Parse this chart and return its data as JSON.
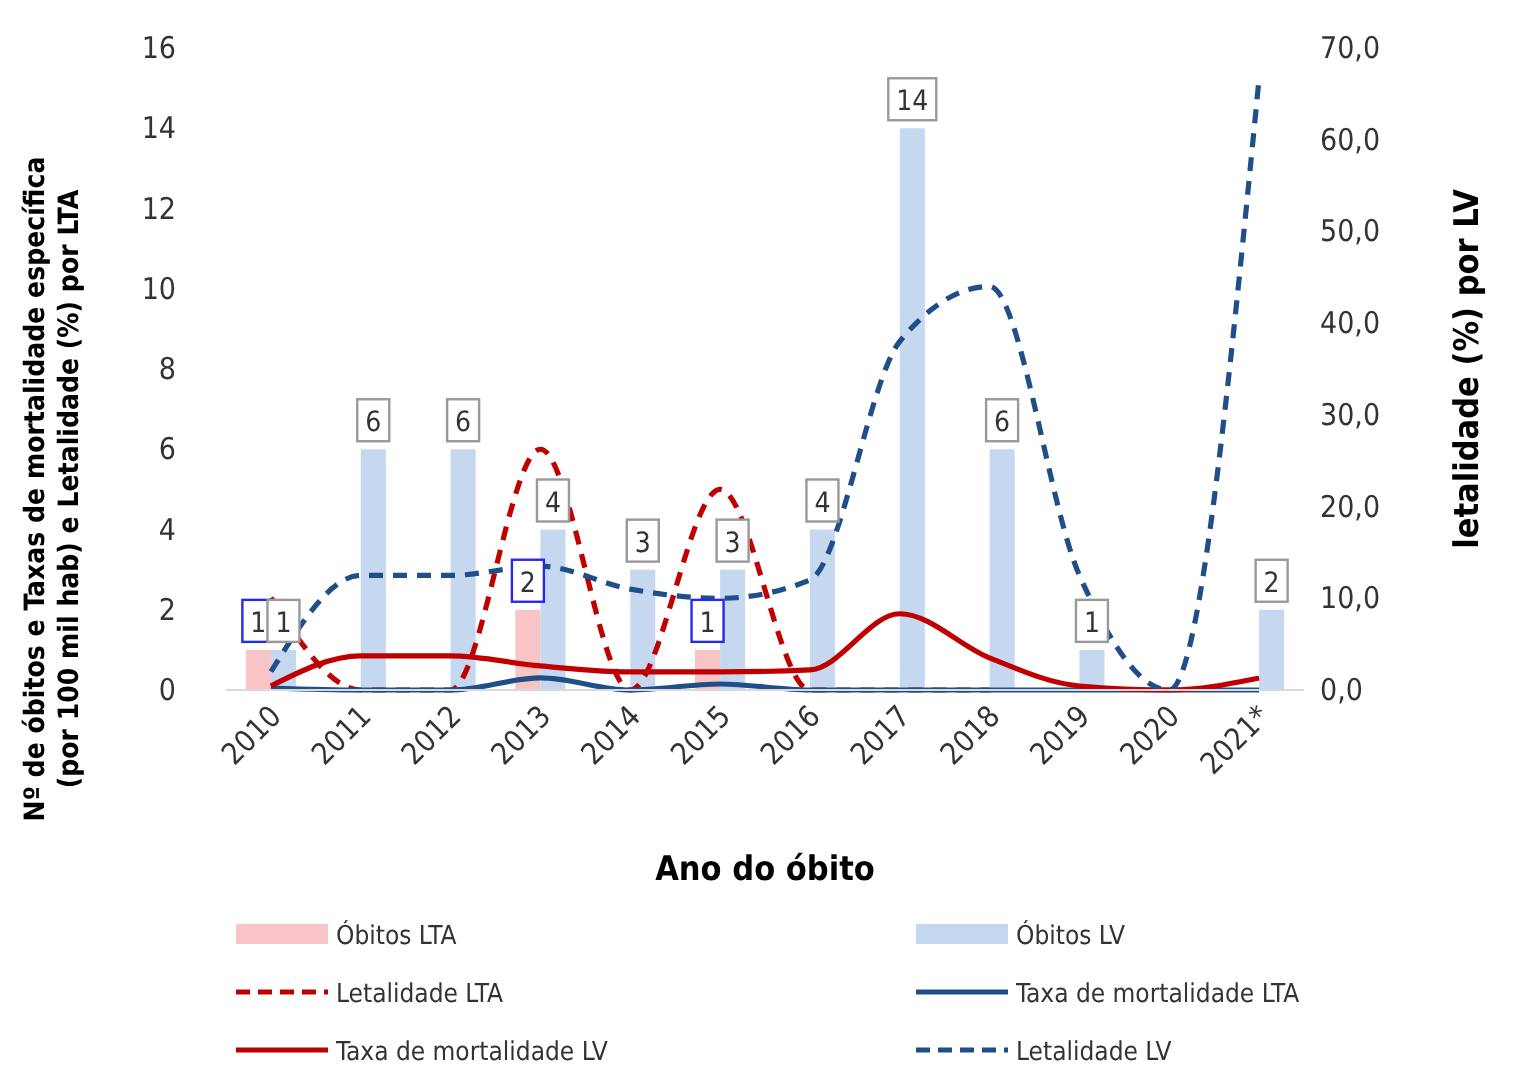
{
  "chart_data": {
    "type": "bar",
    "xlabel": "Ano do óbito",
    "ylabel": "Nº de óbitos e Taxas de mortalidade específica (por 100 mil hab) e Letalidade (%) por LTA",
    "y2label": "letalidade (%) por LV",
    "categories": [
      "2010",
      "2011",
      "2012",
      "2013",
      "2014",
      "2015",
      "2016",
      "2017",
      "2018",
      "2019",
      "2020",
      "2021*"
    ],
    "series": [
      {
        "name": "Óbitos LTA",
        "color": "#f8c4c6",
        "values": [
          1,
          0,
          0,
          2,
          0,
          1,
          0,
          0,
          0,
          0,
          0,
          0
        ],
        "value_labels": [
          "1",
          null,
          null,
          "2",
          null,
          "1",
          null,
          null,
          null,
          null,
          null,
          null
        ]
      },
      {
        "name": "Óbitos LV",
        "color": "#c5d8ef",
        "values": [
          1,
          6,
          6,
          4,
          3,
          3,
          4,
          14,
          6,
          1,
          0,
          2
        ],
        "value_labels": [
          "1",
          "6",
          "6",
          "4",
          "3",
          "3",
          "4",
          "14",
          "6",
          "1",
          null,
          "2"
        ]
      },
      {
        "name": "Letalidade LTA",
        "type": "line",
        "line_style": "dashed",
        "color": "#c00000",
        "values": [
          2.3,
          0,
          0,
          6,
          0,
          5,
          0,
          0,
          0,
          null,
          null,
          null
        ]
      },
      {
        "name": "Taxa de mortalidade LTA",
        "type": "line",
        "line_style": "solid",
        "color": "#1f4e89",
        "values": [
          0.05,
          0,
          0,
          0.3,
          0,
          0.15,
          0,
          0,
          0,
          0,
          0,
          0
        ]
      },
      {
        "name": "Taxa de mortalidade LV",
        "type": "line",
        "line_style": "solid",
        "color": "#c00000",
        "values": [
          0.1,
          0.85,
          0.85,
          0.6,
          0.45,
          0.45,
          0.5,
          1.9,
          0.8,
          0.1,
          0,
          0.3
        ]
      },
      {
        "name": "Letalidade LV",
        "type": "line",
        "line_style": "dashed",
        "axis": "y2",
        "color": "#1f4e89",
        "values": [
          2,
          12.5,
          12.5,
          13.5,
          11,
          10,
          12,
          38,
          44,
          12.5,
          0,
          66.7
        ]
      }
    ],
    "ylim": [
      0,
      16
    ],
    "yticks": [
      0,
      2,
      4,
      6,
      8,
      10,
      12,
      14,
      16
    ],
    "y2lim": [
      0,
      70
    ],
    "y2ticks": [
      {
        "value": 0,
        "label": "0,0"
      },
      {
        "value": 10,
        "label": "10,0"
      },
      {
        "value": 20,
        "label": "20,0"
      },
      {
        "value": 30,
        "label": "30,0"
      },
      {
        "value": 40,
        "label": "40,0"
      },
      {
        "value": 50,
        "label": "50,0"
      },
      {
        "value": 60,
        "label": "60,0"
      },
      {
        "value": 70,
        "label": "70,0"
      }
    ],
    "grid": false,
    "legend": "bottom"
  }
}
